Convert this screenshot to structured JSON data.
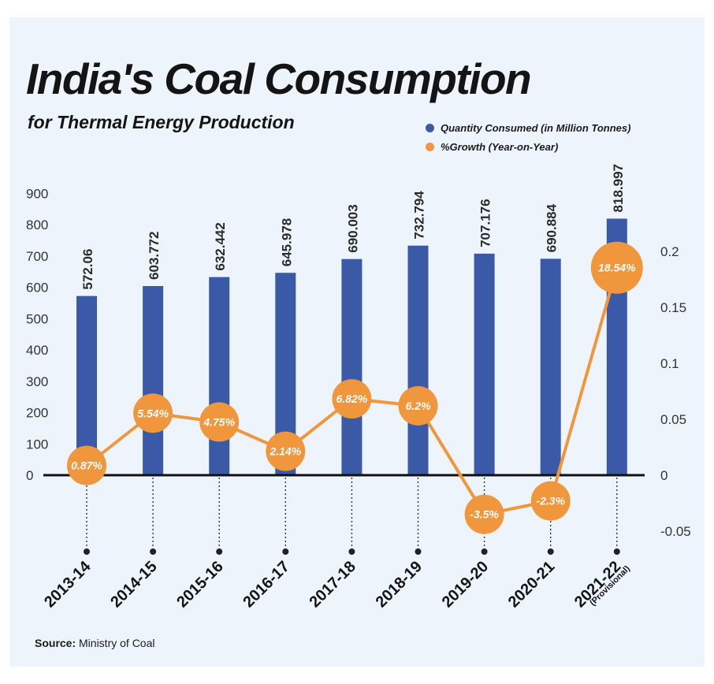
{
  "header": {
    "title": "India's Coal Consumption",
    "subtitle": "for Thermal Energy Production"
  },
  "legend": {
    "items": [
      {
        "label": "Quantity Consumed (in Million Tonnes)",
        "color": "#3a5aa8"
      },
      {
        "label": "%Growth (Year-on-Year)",
        "color": "#f0963c"
      }
    ]
  },
  "footer": {
    "source_label": "Source:",
    "source_value": "Ministry of Coal"
  },
  "chart_data": {
    "type": "bar",
    "title": "India's Coal Consumption",
    "subtitle": "for Thermal Energy Production",
    "categories": [
      "2013-14",
      "2014-15",
      "2015-16",
      "2016-17",
      "2017-18",
      "2018-19",
      "2019-20",
      "2020-21",
      "2021-22"
    ],
    "category_notes": [
      "",
      "",
      "",
      "",
      "",
      "",
      "",
      "",
      "(Provisional)"
    ],
    "series": [
      {
        "name": "Quantity Consumed (in Million Tonnes)",
        "type": "bar",
        "axis": "left",
        "color": "#3a5aa8",
        "values": [
          572.06,
          603.772,
          632.442,
          645.978,
          690.003,
          732.794,
          707.176,
          690.884,
          818.997
        ],
        "labels": [
          "572.06",
          "603.772",
          "632.442",
          "645.978",
          "690.003",
          "732.794",
          "707.176",
          "690.884",
          "818.997"
        ]
      },
      {
        "name": "%Growth (Year-on-Year)",
        "type": "line",
        "axis": "right",
        "color": "#f0963c",
        "values": [
          0.0087,
          0.0554,
          0.0475,
          0.0214,
          0.0682,
          0.062,
          -0.035,
          -0.023,
          0.1854
        ],
        "labels": [
          "0.87%",
          "5.54%",
          "4.75%",
          "2.14%",
          "6.82%",
          "6.2%",
          "-3.5%",
          "-2.3%",
          "18.54%"
        ]
      }
    ],
    "y_left": {
      "min": 0,
      "max": 900,
      "ticks": [
        0,
        100,
        200,
        300,
        400,
        500,
        600,
        700,
        800,
        900
      ]
    },
    "y_right": {
      "min": -0.05,
      "max": 0.2,
      "ticks": [
        "0.2",
        "0.15",
        "0.1",
        "0.05",
        "0",
        "-0.05"
      ]
    },
    "legend_position": "top-right",
    "grid": false
  }
}
